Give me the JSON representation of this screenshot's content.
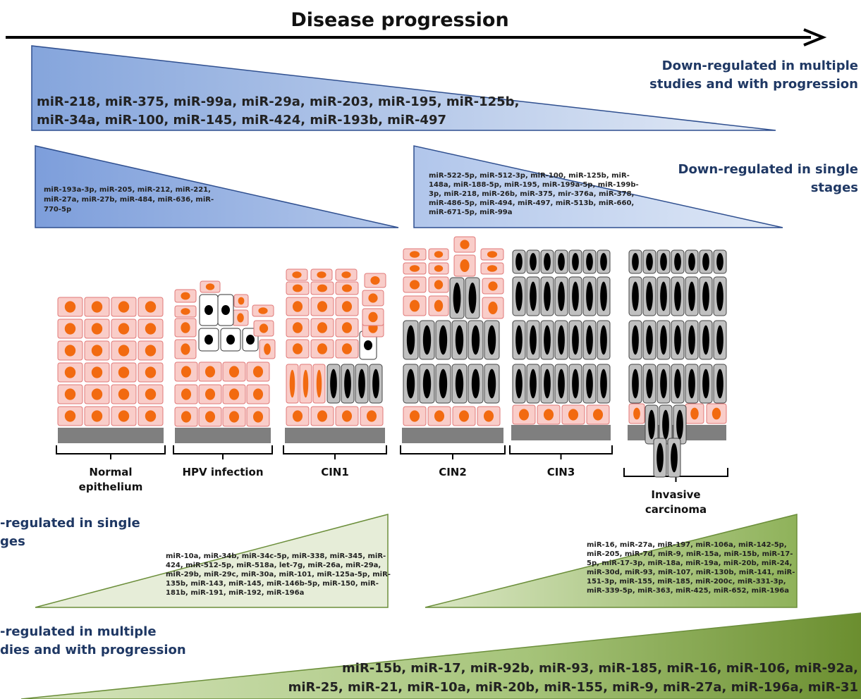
{
  "title": "Disease progression",
  "down_multiple": {
    "label": [
      "Down-regulated in multiple",
      "studies and with progression"
    ],
    "mirnas": [
      "miR-218, miR-375, miR-99a, miR-29a, miR-203, miR-195, miR-125b,",
      "miR-34a, miR-100, miR-145, miR-424, miR-193b, miR-497"
    ]
  },
  "down_single": {
    "label": [
      "Down-regulated in single",
      "stages"
    ],
    "early_mirnas": [
      "miR-193a-3p, miR-205, miR-212, miR-221,",
      "miR-27a, miR-27b, miR-484, miR-636, miR-",
      "770-5p"
    ],
    "late_mirnas": [
      "miR-522-5p, miR-512-3p, miR-100, miR-125b, miR-",
      "148a, miR-188-5p, miR-195, miR-199a-5p, miR-199b-",
      "3p, miR-218, miR-26b, miR-375, mir-376a, miR-378,",
      "miR-486-5p, miR-494, miR-497, miR-513b, miR-660,",
      "miR-671-5p, miR-99a"
    ]
  },
  "stages": [
    [
      "Normal",
      "epithelium"
    ],
    [
      "HPV infection"
    ],
    [
      "CIN1"
    ],
    [
      "CIN2"
    ],
    [
      "CIN3"
    ],
    [
      "Invasive",
      "carcinoma"
    ]
  ],
  "up_single": {
    "label": [
      "-regulated in single",
      "ges"
    ],
    "early_mirnas": [
      "miR-10a, miR-34b, miR-34c-5p, miR-338, miR-345, miR-",
      "424, miR-512-5p, miR-518a, let-7g, miR-26a, miR-29a,",
      "miR-29b, miR-29c, miR-30a, miR-101, miR-125a-5p, miR-",
      "135b, miR-143, miR-145, miR-146b-5p, miR-150, miR-",
      "181b, miR-191, miR-192, miR-196a"
    ],
    "late_mirnas": [
      "miR-16, miR-27a, miR-197, miR-106a, miR-142-5p,",
      "miR-205, miR-7d, miR-9, miR-15a, miR-15b, miR-17-",
      "5p, miR-17-3p, miR-18a, miR-19a, miR-20b, miR-24,",
      "miR-30d, miR-93, miR-107, miR-130b, miR-141, miR-",
      "151-3p, miR-155, miR-185, miR-200c, miR-331-3p,",
      "miR-339-5p, miR-363, miR-425, miR-652, miR-196a"
    ]
  },
  "up_multiple": {
    "label": [
      "-regulated in multiple",
      "dies and with progression"
    ],
    "mirnas": [
      "miR-15b, miR-17, miR-92b, miR-93, miR-185, miR-16, miR-106, miR-92a,",
      "miR-25, miR-21, miR-10a, miR-20b, miR-155, miR-9, miR-27a, miR-196a, miR-31"
    ]
  }
}
